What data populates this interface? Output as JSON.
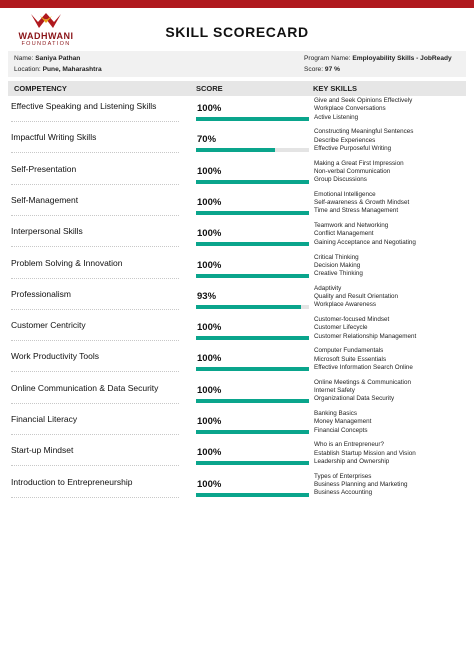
{
  "logo": {
    "name": "WADHWANI",
    "sub": "FOUNDATION"
  },
  "title": "SKILL SCORECARD",
  "info": {
    "name_label": "Name:",
    "name_value": "Saniya Pathan",
    "location_label": "Location:",
    "location_value": "Pune, Maharashtra",
    "program_label": "Program Name:",
    "program_value": "Employability Skills - JobReady",
    "score_label": "Score:",
    "score_value": "97 %"
  },
  "table_header": {
    "competency": "COMPETENCY",
    "score": "SCORE",
    "key_skills": "KEY SKILLS"
  },
  "colors": {
    "accent": "#0aa58c",
    "brand": "#b0191e",
    "track": "#e4e4e4"
  },
  "rows": [
    {
      "competency": "Effective Speaking and Listening Skills",
      "score": "100%",
      "fill": 1.0,
      "skills": [
        "Give and Seek Opinions Effectively",
        "Workplace Conversations",
        "Active Listening"
      ]
    },
    {
      "competency": "Impactful Writing Skills",
      "score": "70%",
      "fill": 0.7,
      "skills": [
        "Constructing Meaningful Sentences",
        "Describe Experiences",
        "Effective Purposeful Writing"
      ]
    },
    {
      "competency": "Self-Presentation",
      "score": "100%",
      "fill": 1.0,
      "skills": [
        "Making a Great First Impression",
        "Non-verbal Communication",
        "Group Discussions"
      ]
    },
    {
      "competency": "Self-Management",
      "score": "100%",
      "fill": 1.0,
      "skills": [
        "Emotional Intelligence",
        "Self-awareness & Growth Mindset",
        "Time and Stress Management"
      ]
    },
    {
      "competency": "Interpersonal Skills",
      "score": "100%",
      "fill": 1.0,
      "skills": [
        "Teamwork and Networking",
        "Conflict Management",
        "Gaining Acceptance and Negotiating"
      ]
    },
    {
      "competency": "Problem Solving & Innovation",
      "score": "100%",
      "fill": 1.0,
      "skills": [
        "Critical Thinking",
        "Decision Making",
        "Creative Thinking"
      ]
    },
    {
      "competency": "Professionalism",
      "score": "93%",
      "fill": 0.93,
      "skills": [
        "Adaptivity",
        "Quality and Result Orientation",
        "Workplace Awareness"
      ]
    },
    {
      "competency": "Customer Centricity",
      "score": "100%",
      "fill": 1.0,
      "skills": [
        "Customer-focused Mindset",
        "Customer Lifecycle",
        "Customer Relationship Management"
      ]
    },
    {
      "competency": "Work Productivity Tools",
      "score": "100%",
      "fill": 1.0,
      "skills": [
        "Computer Fundamentals",
        "Microsoft Suite Essentials",
        "Effective Information Search Online"
      ]
    },
    {
      "competency": "Online Communication & Data Security",
      "score": "100%",
      "fill": 1.0,
      "skills": [
        "Online Meetings & Communication",
        "Internet Safety",
        "Organizational Data Security"
      ]
    },
    {
      "competency": "Financial Literacy",
      "score": "100%",
      "fill": 1.0,
      "skills": [
        "Banking Basics",
        "Money Management",
        "Financial Concepts"
      ]
    },
    {
      "competency": "Start-up Mindset",
      "score": "100%",
      "fill": 1.0,
      "skills": [
        "Who is an Entrepreneur?",
        "Establish Startup Mission and Vision",
        "Leadership and Ownership"
      ]
    },
    {
      "competency": "Introduction to Entrepreneurship",
      "score": "100%",
      "fill": 1.0,
      "skills": [
        "Types of Enterprises",
        "Business Planning and Marketing",
        "Business Accounting"
      ]
    }
  ]
}
